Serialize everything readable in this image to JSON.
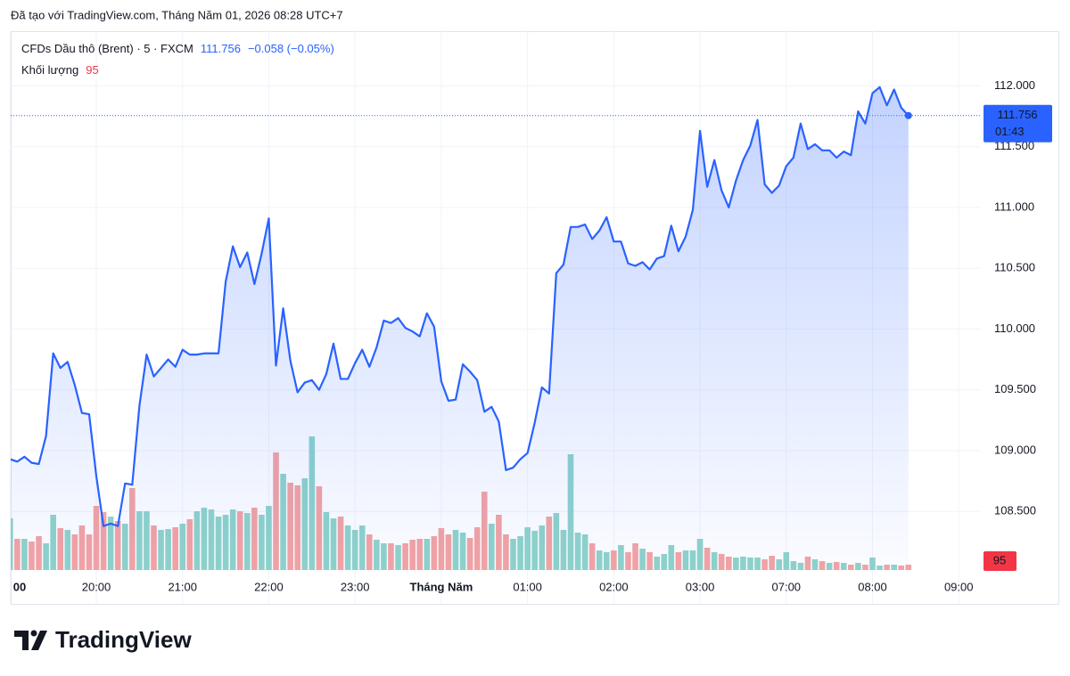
{
  "header": "Đã tạo với TradingView.com, Tháng Năm 01, 2026 08:28 UTC+7",
  "logo": "TradingView",
  "chart_data": {
    "type": "line",
    "area": true,
    "grid": true,
    "change": "−0.058 (−0.05%)",
    "countdown": "01:43",
    "categories": [
      "00",
      null,
      null,
      null,
      null,
      null,
      null,
      null,
      null,
      null,
      null,
      null,
      "20:00",
      null,
      null,
      null,
      null,
      null,
      null,
      null,
      null,
      null,
      null,
      null,
      "21:00",
      null,
      null,
      null,
      null,
      null,
      null,
      null,
      null,
      null,
      null,
      null,
      "22:00",
      null,
      null,
      null,
      null,
      null,
      null,
      null,
      null,
      null,
      null,
      null,
      "23:00",
      null,
      null,
      null,
      null,
      null,
      null,
      null,
      null,
      null,
      null,
      null,
      "Tháng Năm",
      null,
      null,
      null,
      null,
      null,
      null,
      null,
      null,
      null,
      null,
      null,
      "01:00",
      null,
      null,
      null,
      null,
      null,
      null,
      null,
      null,
      null,
      null,
      null,
      "02:00",
      null,
      null,
      null,
      null,
      null,
      null,
      null,
      null,
      null,
      null,
      null,
      "03:00",
      null,
      null,
      null,
      null,
      null,
      null,
      null,
      null,
      null,
      null,
      null,
      "07:00",
      null,
      null,
      null,
      null,
      null,
      null,
      null,
      null,
      null,
      null,
      null,
      "08:00",
      null,
      null,
      null,
      null,
      null,
      null,
      null,
      null,
      null,
      null,
      null,
      "09:00"
    ],
    "series": [
      {
        "name": "CFDs Dầu thô (Brent) · 5 · FXCM",
        "color": "#2962ff",
        "values": [
          108.93,
          108.91,
          108.95,
          108.9,
          108.89,
          109.12,
          109.8,
          109.68,
          109.73,
          109.54,
          109.31,
          109.3,
          108.79,
          108.38,
          108.4,
          108.38,
          108.73,
          108.72,
          109.37,
          109.79,
          109.61,
          109.68,
          109.75,
          109.69,
          109.83,
          109.79,
          109.79,
          109.8,
          109.8,
          109.8,
          110.39,
          110.68,
          110.51,
          110.63,
          110.37,
          110.62,
          110.91,
          109.7,
          110.17,
          109.74,
          109.48,
          109.56,
          109.58,
          109.5,
          109.63,
          109.88,
          109.59,
          109.59,
          109.72,
          109.83,
          109.69,
          109.85,
          110.07,
          110.05,
          110.09,
          110.01,
          109.98,
          109.94,
          110.13,
          110.02,
          109.57,
          109.41,
          109.42,
          109.71,
          109.65,
          109.58,
          109.32,
          109.36,
          109.24,
          108.84,
          108.86,
          108.93,
          108.98,
          109.23,
          109.52,
          109.47,
          110.46,
          110.53,
          110.84,
          110.84,
          110.86,
          110.74,
          110.81,
          110.92,
          110.72,
          110.72,
          110.54,
          110.52,
          110.55,
          110.49,
          110.58,
          110.6,
          110.85,
          110.64,
          110.76,
          110.98,
          111.63,
          111.17,
          111.39,
          111.14,
          111.0,
          111.22,
          111.39,
          111.51,
          111.72,
          111.19,
          111.12,
          111.18,
          111.34,
          111.41,
          111.69,
          111.48,
          111.52,
          111.47,
          111.47,
          111.41,
          111.46,
          111.43,
          111.79,
          111.69,
          111.94,
          111.99,
          111.84,
          111.97,
          111.82,
          111.756,
          null,
          null,
          null,
          null,
          null,
          null,
          null
        ]
      },
      {
        "name": "Khối lượng",
        "type": "volume",
        "up_color": "#8fd3ca",
        "down_color": "#f4a3a3",
        "label_color": "#f23645",
        "values": [
          918,
          554,
          554,
          507,
          602,
          475,
          982,
          744,
          713,
          633,
          792,
          633,
          1140,
          1029,
          950,
          871,
          823,
          1457,
          1045,
          1045,
          792,
          713,
          728,
          760,
          823,
          903,
          1045,
          1108,
          1077,
          950,
          982,
          1077,
          1045,
          1013,
          1108,
          982,
          1140,
          2090,
          1710,
          1552,
          1504,
          1631,
          2375,
          1488,
          1029,
          918,
          950,
          792,
          713,
          792,
          633,
          538,
          475,
          475,
          443,
          475,
          538,
          554,
          554,
          602,
          744,
          633,
          713,
          665,
          570,
          760,
          1393,
          823,
          982,
          633,
          554,
          602,
          760,
          697,
          792,
          950,
          1013,
          713,
          2058,
          665,
          633,
          475,
          348,
          317,
          348,
          443,
          317,
          475,
          380,
          317,
          238,
          285,
          443,
          317,
          348,
          348,
          554,
          396,
          317,
          285,
          238,
          222,
          238,
          222,
          222,
          190,
          253,
          190,
          317,
          158,
          127,
          238,
          190,
          158,
          127,
          143,
          127,
          95,
          127,
          95,
          222,
          79,
          95,
          95,
          79,
          95,
          null,
          null,
          null,
          null,
          null,
          null,
          null
        ]
      }
    ],
    "ylim": [
      107.74,
      112.45
    ],
    "yticks": [
      {
        "value": 108.5,
        "label": "108.500"
      },
      {
        "value": 109,
        "label": "109.000"
      },
      {
        "value": 109.5,
        "label": "109.500"
      },
      {
        "value": 110,
        "label": "110.000"
      },
      {
        "value": 110.5,
        "label": "110.500"
      },
      {
        "value": 111,
        "label": "111.000"
      },
      {
        "value": 111.5,
        "label": "111.500"
      },
      {
        "value": 112,
        "label": "112.000"
      }
    ]
  }
}
